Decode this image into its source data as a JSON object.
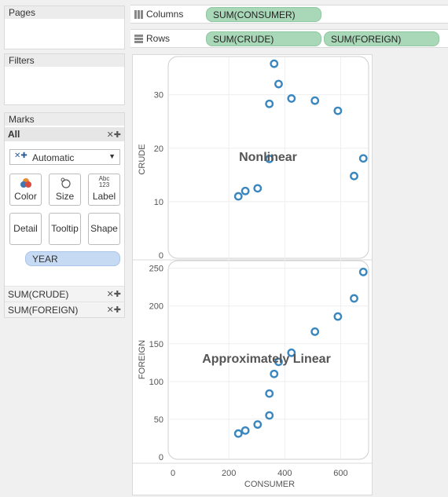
{
  "pages": {
    "title": "Pages"
  },
  "filters": {
    "title": "Filters"
  },
  "marks": {
    "title": "Marks",
    "all_label": "All",
    "mark_type": "Automatic",
    "buttons": [
      {
        "label": "Color",
        "icon": "color-icon"
      },
      {
        "label": "Size",
        "icon": "size-icon"
      },
      {
        "label": "Label",
        "icon": "label-icon"
      },
      {
        "label": "Detail",
        "icon": "detail-icon"
      },
      {
        "label": "Tooltip",
        "icon": "tooltip-icon"
      },
      {
        "label": "Shape",
        "icon": "shape-icon"
      }
    ],
    "label_icon_text": "Abc\n123",
    "field_pill": "YEAR",
    "measures": [
      "SUM(CRUDE)",
      "SUM(FOREIGN)"
    ]
  },
  "shelves": {
    "columns_label": "Columns",
    "columns_pills": [
      "SUM(CONSUMER)"
    ],
    "rows_label": "Rows",
    "rows_pills": [
      "SUM(CRUDE)",
      "SUM(FOREIGN)"
    ]
  },
  "colors": {
    "mark": "#3a87c0",
    "pill_green": "#a9d8b8",
    "pill_blue": "#c6dbf3"
  },
  "chart_data": [
    {
      "type": "scatter",
      "annotation": "Nonlinear",
      "xlabel": "",
      "ylabel": "CRUDE",
      "ylim": [
        0,
        36
      ],
      "yticks": [
        0,
        10,
        20,
        30
      ],
      "x": [
        234,
        259,
        303,
        345,
        345,
        362,
        378,
        424,
        508,
        590,
        648,
        681
      ],
      "y": [
        11.0,
        12.0,
        12.5,
        18.0,
        28.3,
        35.8,
        32.0,
        29.3,
        28.9,
        27.0,
        14.8,
        18.1
      ]
    },
    {
      "type": "scatter",
      "annotation": "Approximately Linear",
      "xlabel": "CONSUMER",
      "ylabel": "FOREIGN",
      "ylim": [
        0,
        250
      ],
      "yticks": [
        0,
        50,
        100,
        150,
        200,
        250
      ],
      "xticks": [
        0,
        200,
        400,
        600
      ],
      "xlim": [
        0,
        700
      ],
      "x": [
        234,
        259,
        303,
        345,
        345,
        362,
        378,
        424,
        508,
        590,
        648,
        681
      ],
      "y": [
        31,
        35,
        43,
        55,
        84,
        110,
        126,
        138,
        166,
        186,
        210,
        245
      ]
    }
  ]
}
